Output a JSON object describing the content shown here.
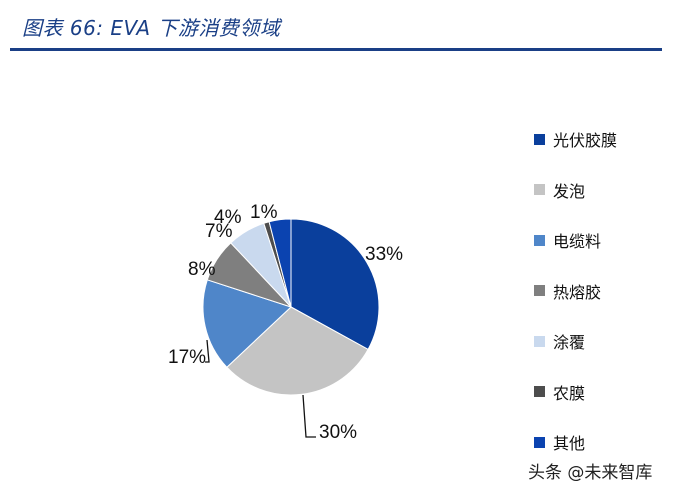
{
  "header": {
    "title": "图表 66:  EVA 下游消费领域"
  },
  "chart_data": {
    "type": "pie",
    "title": "",
    "categories": [
      "光伏胶膜",
      "发泡",
      "电缆料",
      "热熔胶",
      "涂覆",
      "农膜",
      "其他"
    ],
    "values": [
      33,
      30,
      17,
      8,
      7,
      1,
      4
    ],
    "labels": [
      "33%",
      "30%",
      "17%",
      "8%",
      "7%",
      "1%",
      "4%"
    ],
    "colors": [
      "#0a3f9c",
      "#c4c4c4",
      "#4f86c9",
      "#7f7f7f",
      "#c9d9ee",
      "#4d4d4d",
      "#0b43b0"
    ],
    "legend_position": "right"
  },
  "watermark": {
    "text": "头条 @未来智库"
  }
}
